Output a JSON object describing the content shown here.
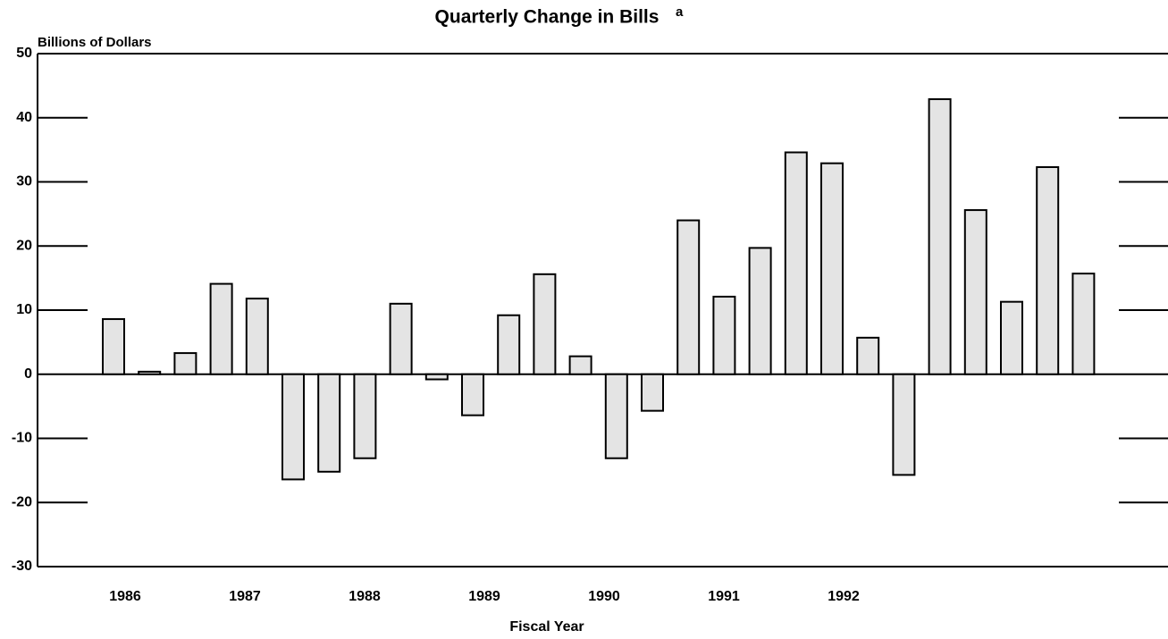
{
  "chart_data": {
    "type": "bar",
    "title": "Quarterly Change in Bills",
    "title_note": "a",
    "y_label": "Billions of Dollars",
    "x_label": "Fiscal Year",
    "categories": [
      null,
      null,
      null,
      null,
      null,
      null,
      null,
      null,
      null,
      null,
      null,
      null,
      null,
      null,
      null,
      null,
      null,
      null,
      null,
      null,
      null,
      null,
      null,
      null,
      null,
      null,
      null,
      null
    ],
    "x_labels": [
      "1986",
      "1987",
      "1988",
      "1989",
      "1990",
      "1991",
      "1992"
    ],
    "values": [
      8.6,
      0.4,
      3.3,
      14.1,
      11.8,
      -16.4,
      -15.2,
      -13.1,
      11.0,
      -0.8,
      -6.4,
      9.2,
      15.6,
      2.8,
      -13.1,
      -5.7,
      24.0,
      12.1,
      19.7,
      34.6,
      32.9,
      5.7,
      -15.7,
      42.9,
      25.6,
      11.3,
      32.3,
      15.7
    ],
    "color": "#e4e4e4",
    "ylim": [
      -30,
      50
    ],
    "yticks": [
      -30,
      -20,
      -10,
      0,
      10,
      20,
      30,
      40,
      50
    ]
  }
}
